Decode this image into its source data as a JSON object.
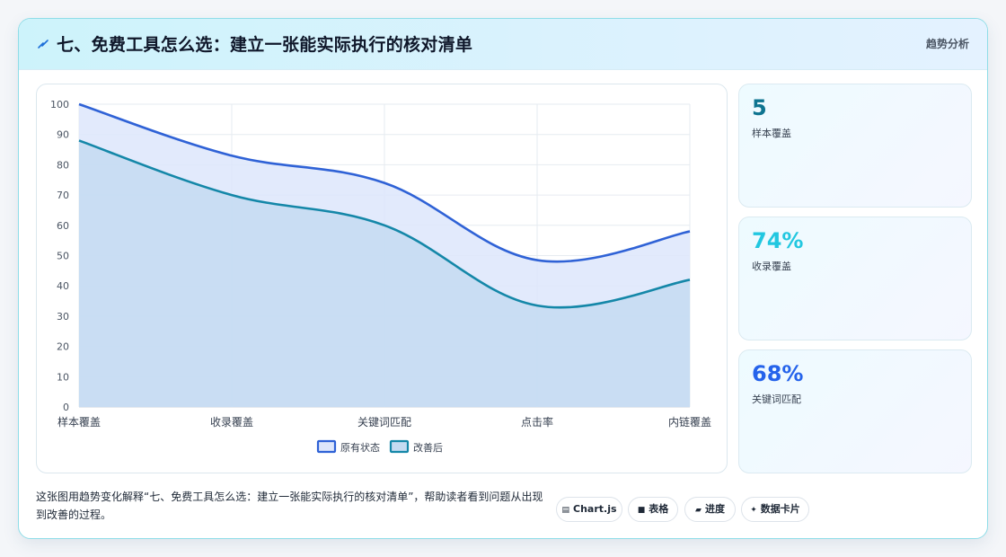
{
  "header": {
    "title": "七、免费工具怎么选：建立一张能实际执行的核对清单",
    "tag": "趋势分析"
  },
  "chart_data": {
    "type": "area",
    "categories": [
      "样本覆盖",
      "收录覆盖",
      "关键词匹配",
      "点击率",
      "内链覆盖"
    ],
    "ylim": [
      0,
      100
    ],
    "yticks": [
      0,
      10,
      20,
      30,
      40,
      50,
      60,
      70,
      80,
      90,
      100
    ],
    "grid": true,
    "legend_position": "bottom",
    "series": [
      {
        "name": "原有状态",
        "values": [
          100,
          83,
          74,
          48.5,
          58
        ],
        "color": "#2f62d6",
        "fill": "#dde6fb"
      },
      {
        "name": "改善后",
        "values": [
          88,
          70,
          60,
          33.5,
          42
        ],
        "color": "#1487a8",
        "fill": "#c4dbf1"
      }
    ]
  },
  "stats": [
    {
      "value": "5",
      "label": "样本覆盖",
      "color": "#0e7490"
    },
    {
      "value": "74%",
      "label": "收录覆盖",
      "color": "#22c7e0"
    },
    {
      "value": "68%",
      "label": "关键词匹配",
      "color": "#2563eb"
    }
  ],
  "footer": {
    "text": "这张图用趋势变化解释“七、免费工具怎么选：建立一张能实际执行的核对清单”，帮助读者看到问题从出现到改善的过程。",
    "chips": [
      {
        "icon": "▤",
        "label": "Chart.js"
      },
      {
        "icon": "■",
        "label": "表格"
      },
      {
        "icon": "▰",
        "label": "进度"
      },
      {
        "icon": "✦",
        "label": "数据卡片"
      }
    ]
  }
}
